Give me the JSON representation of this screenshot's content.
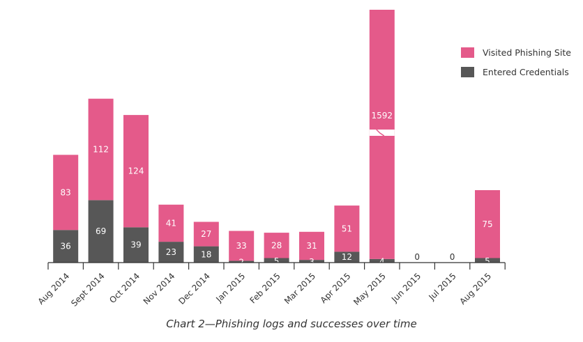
{
  "chart_data": {
    "type": "bar",
    "stacked": true,
    "title": "Chart 2—Phishing logs and successes over time",
    "categories": [
      "Aug 2014",
      "Sept 2014",
      "Oct 2014",
      "Nov 2014",
      "Dec 2014",
      "Jan 2015",
      "Feb 2015",
      "Mar 2015",
      "Apr 2015",
      "May 2015",
      "Jun 2015",
      "Jul 2015",
      "Aug 2015"
    ],
    "series": [
      {
        "name": "Entered Credentials",
        "color": "#575757",
        "values": [
          36,
          69,
          39,
          23,
          18,
          2,
          5,
          3,
          12,
          4,
          0,
          0,
          5
        ]
      },
      {
        "name": "Visited Phishing Site",
        "color": "#e45a8a",
        "values": [
          83,
          112,
          124,
          41,
          27,
          33,
          28,
          31,
          51,
          1592,
          0,
          0,
          75
        ]
      }
    ],
    "display_labels": {
      "Entered Credentials": [
        "36",
        "69",
        "39",
        "23",
        "18",
        "2",
        "5",
        "3",
        "12",
        "4",
        "0",
        "0",
        "5"
      ],
      "Visited Phishing Site": [
        "83",
        "112",
        "124",
        "41",
        "27",
        "33",
        "28",
        "31",
        "51",
        "1592",
        "",
        "",
        "75"
      ]
    },
    "axis_break": {
      "category": "May 2015",
      "series": "Visited Phishing Site"
    },
    "legend": {
      "position": "top-right",
      "entries": [
        "Visited Phishing Site",
        "Entered Credentials"
      ]
    },
    "xlabel": "",
    "ylabel": "",
    "ylim": [
      0,
      210
    ],
    "grid": false
  }
}
